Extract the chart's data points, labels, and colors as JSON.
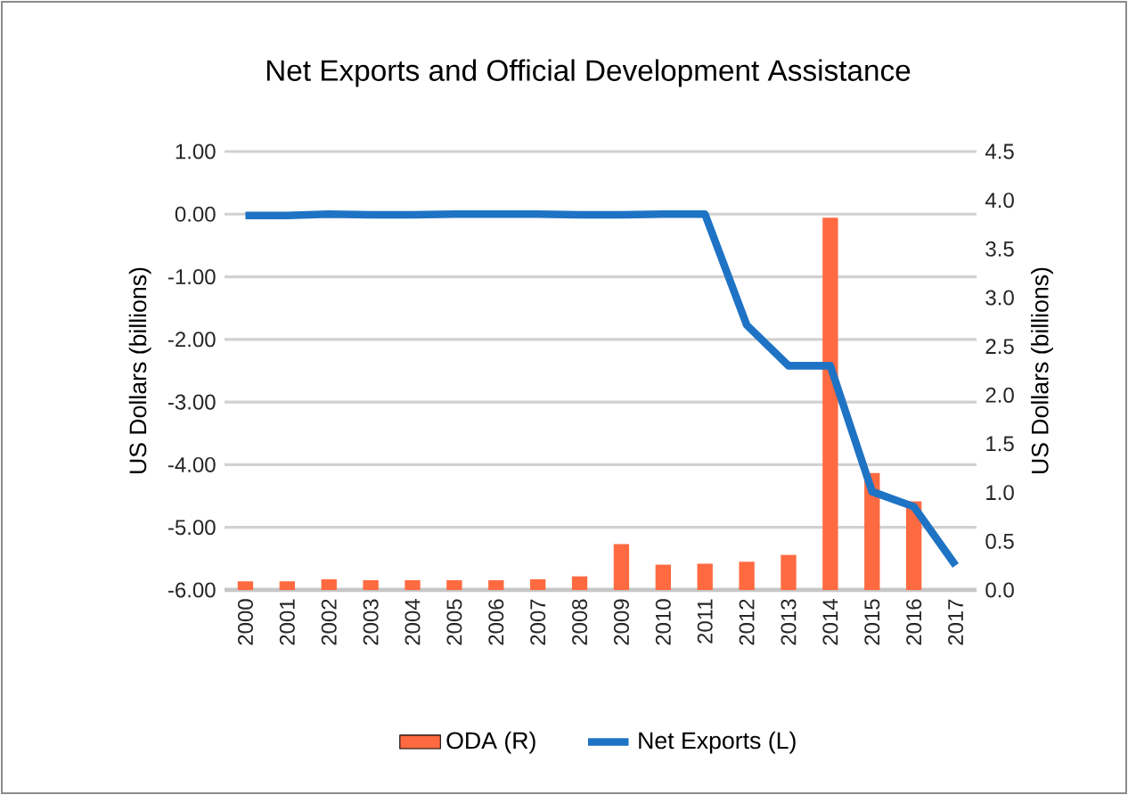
{
  "chart_data": {
    "type": "bar",
    "title": "Net Exports and Official Development Assistance",
    "categories": [
      "2000",
      "2001",
      "2002",
      "2003",
      "2004",
      "2005",
      "2006",
      "2007",
      "2008",
      "2009",
      "2010",
      "2011",
      "2012",
      "2013",
      "2014",
      "2015",
      "2016",
      "2017"
    ],
    "series": [
      {
        "name": "ODA (R)",
        "axis": "y2",
        "color": "#ff6a40",
        "values": [
          0.09,
          0.09,
          0.11,
          0.1,
          0.1,
          0.1,
          0.1,
          0.11,
          0.14,
          0.47,
          0.26,
          0.27,
          0.29,
          0.36,
          3.82,
          1.2,
          0.91,
          null
        ]
      },
      {
        "name": "Net Exports (L)",
        "type": "line",
        "color": "#1f73c4",
        "values": [
          -0.02,
          -0.02,
          0.0,
          -0.01,
          -0.01,
          0.0,
          0.0,
          0.0,
          -0.01,
          -0.01,
          0.0,
          0.0,
          -1.77,
          -2.42,
          -2.42,
          -4.43,
          -4.67,
          -5.61
        ]
      }
    ],
    "ylabel": "US Dollars (billions)",
    "y2label": "US Dollars (billions)",
    "ylim": [
      -6,
      1
    ],
    "yticks": [
      {
        "value": -6,
        "label": "-6.00"
      },
      {
        "value": -5,
        "label": "-5.00"
      },
      {
        "value": -4,
        "label": "-4.00"
      },
      {
        "value": -3,
        "label": "-3.00"
      },
      {
        "value": -2,
        "label": "-2.00"
      },
      {
        "value": -1,
        "label": "-1.00"
      },
      {
        "value": 0,
        "label": "0.00"
      },
      {
        "value": 1,
        "label": "1.00"
      }
    ],
    "y2lim": [
      0,
      4.5
    ],
    "y2ticks": [
      {
        "value": 0,
        "label": "0.0"
      },
      {
        "value": 0.5,
        "label": "0.5"
      },
      {
        "value": 1,
        "label": "1.0"
      },
      {
        "value": 1.5,
        "label": "1.5"
      },
      {
        "value": 2,
        "label": "2.0"
      },
      {
        "value": 2.5,
        "label": "2.5"
      },
      {
        "value": 3,
        "label": "3.0"
      },
      {
        "value": 3.5,
        "label": "3.5"
      },
      {
        "value": 4,
        "label": "4.0"
      },
      {
        "value": 4.5,
        "label": "4.5"
      }
    ],
    "grid": "y",
    "legend": "bottom"
  }
}
